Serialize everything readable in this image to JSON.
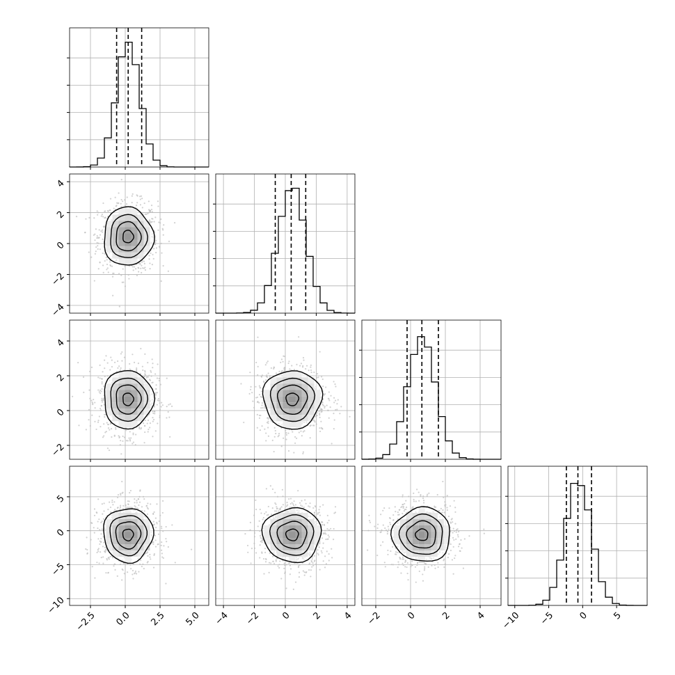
{
  "chart_data": {
    "type": "corner",
    "n_params": 4,
    "hist_bins": 20,
    "colors": {
      "line": "#000000",
      "grid": "#b0b0b0",
      "points": "#bdbdbd",
      "frame": "#000000"
    },
    "grid": true,
    "params": [
      {
        "range": [
          -4.0,
          6.0
        ],
        "mean": 0.2,
        "sd": 0.85,
        "quantiles": [
          -0.62,
          0.21,
          1.18
        ],
        "ticks": [
          -2.5,
          0.0,
          2.5,
          5.0
        ],
        "tick_labels": [
          "−2.5",
          "0.0",
          "2.5",
          "5.0"
        ]
      },
      {
        "range": [
          -4.5,
          4.5
        ],
        "mean": 0.45,
        "sd": 0.9,
        "quantiles": [
          -0.65,
          0.38,
          1.32
        ],
        "ticks": [
          -4,
          -2,
          0,
          2,
          4
        ],
        "tick_labels": [
          "−4",
          "−2",
          "0",
          "2",
          "4"
        ]
      },
      {
        "range": [
          -2.8,
          5.2
        ],
        "mean": 0.65,
        "sd": 0.8,
        "quantiles": [
          -0.2,
          0.65,
          1.6
        ],
        "ticks": [
          -2,
          0,
          2,
          4
        ],
        "tick_labels": [
          "−2",
          "0",
          "2",
          "4"
        ]
      },
      {
        "range": [
          -11.0,
          9.5
        ],
        "mean": -0.6,
        "sd": 1.9,
        "quantiles": [
          -2.4,
          -0.7,
          1.3
        ],
        "ticks": [
          -10,
          -5,
          0,
          5
        ],
        "tick_labels": [
          "−10",
          "−5",
          "0",
          "5"
        ]
      }
    ],
    "hist_y_ticks": 5,
    "contour_levels": 4
  }
}
